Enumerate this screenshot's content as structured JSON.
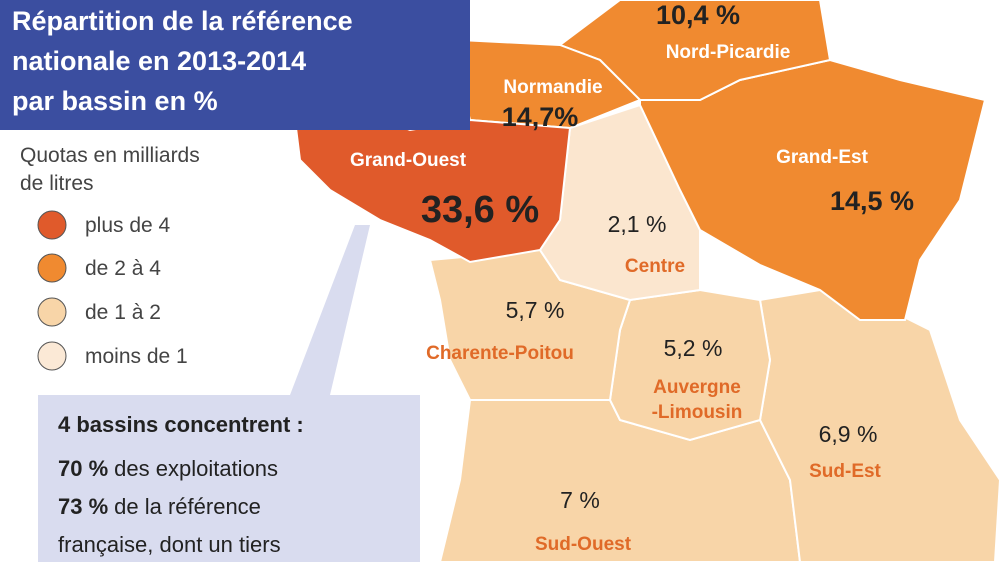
{
  "header": {
    "title_lines": [
      "Répartition de la référence",
      "nationale en 2013-2014",
      "par bassin en %"
    ]
  },
  "legend": {
    "title_lines": [
      "Quotas en milliards",
      "de litres"
    ],
    "items": [
      "plus de 4",
      "de 2 à 4",
      "de 1 à 2",
      "moins de 1"
    ]
  },
  "callout": {
    "heading": "4 bassins concentrent :",
    "lines": [
      {
        "bold": "70 %",
        "text": "des exploitations"
      },
      {
        "bold": "73 %",
        "text": "de la référence"
      }
    ],
    "last_line": "française, dont un tiers"
  },
  "regions": [
    {
      "name": "Nord-Picardie",
      "share": "10,4 %"
    },
    {
      "name": "Normandie",
      "share": "14,7%"
    },
    {
      "name": "Grand-Ouest",
      "share": "33,6 %"
    },
    {
      "name": "Grand-Est",
      "share": "14,5 %"
    },
    {
      "name": "Centre",
      "share": "2,1 %"
    },
    {
      "name": "Charente-Poitou",
      "share": "5,7 %"
    },
    {
      "name_lines": [
        "Auvergne",
        "-Limousin"
      ],
      "share": "5,2 %"
    },
    {
      "name": "Sud-Est",
      "share": "6,9 %"
    },
    {
      "name": "Sud-Ouest",
      "share": "7 %"
    }
  ]
}
